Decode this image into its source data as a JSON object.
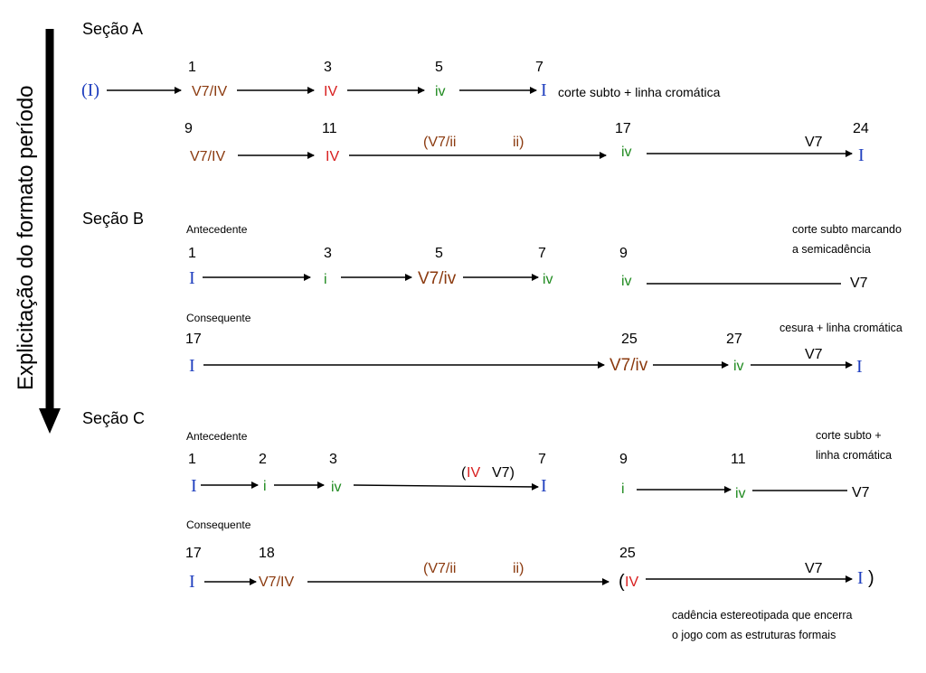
{
  "colors": {
    "blue": "#1f3fbf",
    "brown": "#8b3a0f",
    "red": "#d81e1e",
    "green": "#1f8a1f",
    "black": "#000000"
  },
  "side_label": "Explicitação do formato período",
  "sections": {
    "a": {
      "title": "Seção A"
    },
    "b": {
      "title": "Seção B",
      "antecedent": "Antecedente",
      "consequent": "Consequente"
    },
    "c": {
      "title": "Seção C",
      "antecedent": "Antecedente",
      "consequent": "Consequente"
    }
  },
  "chords": [
    {
      "id": "a1-start",
      "text": "(I)",
      "color": "blue"
    },
    {
      "id": "a1-c1",
      "text": "V7/IV",
      "color": "brown"
    },
    {
      "id": "a1-c3",
      "text": "IV",
      "color": "red"
    },
    {
      "id": "a1-c5",
      "text": "iv",
      "color": "green"
    },
    {
      "id": "a1-c7",
      "text": "I",
      "color": "blue"
    },
    {
      "id": "a2-c9",
      "text": "V7/IV",
      "color": "brown"
    },
    {
      "id": "a2-c11",
      "text": "IV",
      "color": "red"
    },
    {
      "id": "a2-v7ii",
      "text": "(V7/ii",
      "color": "brown"
    },
    {
      "id": "a2-ii",
      "text": "ii)",
      "color": "brown"
    },
    {
      "id": "a2-c17",
      "text": "iv",
      "color": "green"
    },
    {
      "id": "a2-v7",
      "text": "V7",
      "color": "black"
    },
    {
      "id": "a2-c24",
      "text": "I",
      "color": "blue"
    },
    {
      "id": "b1-c1",
      "text": "I",
      "color": "blue"
    },
    {
      "id": "b1-c3",
      "text": "i",
      "color": "green"
    },
    {
      "id": "b1-c5",
      "text": "V7/iv",
      "color": "brown"
    },
    {
      "id": "b1-c7",
      "text": "iv",
      "color": "green"
    },
    {
      "id": "b1-c9",
      "text": "iv",
      "color": "green"
    },
    {
      "id": "b1-v7",
      "text": "V7",
      "color": "black"
    },
    {
      "id": "b2-c17",
      "text": "I",
      "color": "blue"
    },
    {
      "id": "b2-c25",
      "text": "V7/iv",
      "color": "brown"
    },
    {
      "id": "b2-c27",
      "text": "iv",
      "color": "green"
    },
    {
      "id": "b2-v7",
      "text": "V7",
      "color": "black"
    },
    {
      "id": "b2-end",
      "text": "I",
      "color": "blue"
    },
    {
      "id": "c1-c1",
      "text": "I",
      "color": "blue"
    },
    {
      "id": "c1-c2",
      "text": "i",
      "color": "green"
    },
    {
      "id": "c1-c3",
      "text": "iv",
      "color": "green"
    },
    {
      "id": "c1-paren",
      "text": "(",
      "color": "black"
    },
    {
      "id": "c1-iv",
      "text": "IV",
      "color": "red"
    },
    {
      "id": "c1-v7",
      "text": "V7)",
      "color": "black"
    },
    {
      "id": "c1-c7",
      "text": "I",
      "color": "blue"
    },
    {
      "id": "c1-c9",
      "text": "i",
      "color": "green"
    },
    {
      "id": "c1-c11",
      "text": "iv",
      "color": "green"
    },
    {
      "id": "c1-endv7",
      "text": "V7",
      "color": "black"
    },
    {
      "id": "c2-c17",
      "text": "I",
      "color": "blue"
    },
    {
      "id": "c2-c18",
      "text": "V7/IV",
      "color": "brown"
    },
    {
      "id": "c2-v7ii",
      "text": "(V7/ii",
      "color": "brown"
    },
    {
      "id": "c2-ii",
      "text": "ii)",
      "color": "brown"
    },
    {
      "id": "c2-paren",
      "text": "(",
      "color": "black"
    },
    {
      "id": "c2-iv",
      "text": "IV",
      "color": "red"
    },
    {
      "id": "c2-v7",
      "text": "V7",
      "color": "black"
    },
    {
      "id": "c2-end",
      "text": "I",
      "color": "blue"
    },
    {
      "id": "c2-endparen",
      "text": ")",
      "color": "black"
    }
  ],
  "measures": [
    {
      "id": "a1-m1",
      "text": "1"
    },
    {
      "id": "a1-m3",
      "text": "3"
    },
    {
      "id": "a1-m5",
      "text": "5"
    },
    {
      "id": "a1-m7",
      "text": "7"
    },
    {
      "id": "a2-m9",
      "text": "9"
    },
    {
      "id": "a2-m11",
      "text": "11"
    },
    {
      "id": "a2-m17",
      "text": "17"
    },
    {
      "id": "a2-m24",
      "text": "24"
    },
    {
      "id": "b1-m1",
      "text": "1"
    },
    {
      "id": "b1-m3",
      "text": "3"
    },
    {
      "id": "b1-m5",
      "text": "5"
    },
    {
      "id": "b1-m7",
      "text": "7"
    },
    {
      "id": "b1-m9",
      "text": "9"
    },
    {
      "id": "b2-m17",
      "text": "17"
    },
    {
      "id": "b2-m25",
      "text": "25"
    },
    {
      "id": "b2-m27",
      "text": "27"
    },
    {
      "id": "c1-m1",
      "text": "1"
    },
    {
      "id": "c1-m2",
      "text": "2"
    },
    {
      "id": "c1-m3",
      "text": "3"
    },
    {
      "id": "c1-m7",
      "text": "7"
    },
    {
      "id": "c1-m9",
      "text": "9"
    },
    {
      "id": "c1-m11",
      "text": "11"
    },
    {
      "id": "c2-m17",
      "text": "17"
    },
    {
      "id": "c2-m18",
      "text": "18"
    },
    {
      "id": "c2-m25",
      "text": "25"
    }
  ],
  "annotations": [
    {
      "id": "a-note",
      "lines": [
        "corte subto + linha cromática"
      ]
    },
    {
      "id": "b1-note",
      "lines": [
        "corte subto marcando",
        "a semicadência"
      ]
    },
    {
      "id": "b2-note",
      "lines": [
        "cesura + linha cromática"
      ]
    },
    {
      "id": "c1-note",
      "lines": [
        "corte subto +",
        "linha cromática"
      ]
    },
    {
      "id": "c2-note",
      "lines": [
        "cadência estereotipada que encerra",
        "o jogo com as estruturas formais"
      ]
    }
  ]
}
